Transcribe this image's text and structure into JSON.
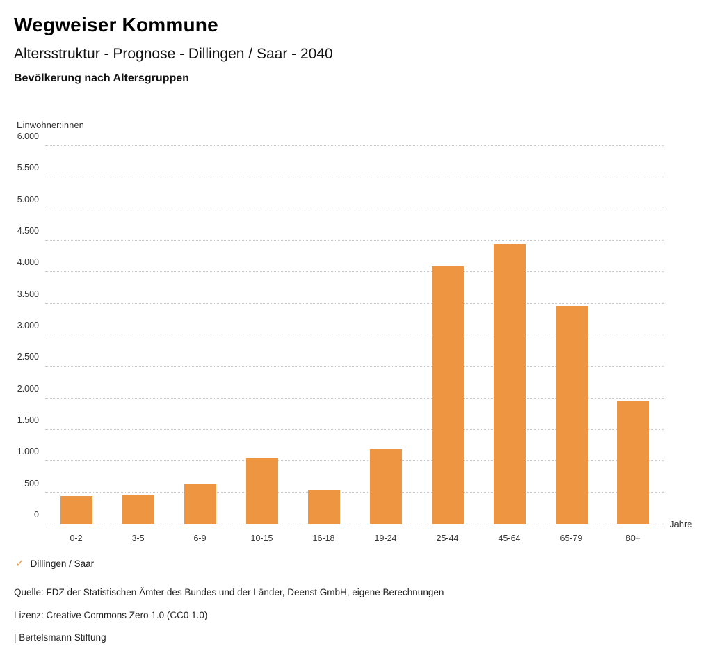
{
  "header": {
    "title": "Wegweiser Kommune",
    "subtitle": "Altersstruktur - Prognose - Dillingen / Saar - 2040",
    "chart_title": "Bevölkerung nach Altersgruppen"
  },
  "chart_data": {
    "type": "bar",
    "title": "Bevölkerung nach Altersgruppen",
    "categories": [
      "0-2",
      "3-5",
      "6-9",
      "10-15",
      "16-18",
      "19-24",
      "25-44",
      "45-64",
      "65-79",
      "80+"
    ],
    "values": [
      450,
      460,
      640,
      1050,
      550,
      1190,
      4090,
      4450,
      3460,
      1960
    ],
    "series_name": "Dillingen / Saar",
    "xlabel": "Jahre",
    "ylabel": "Einwohner:innen",
    "ylim": [
      0,
      6000
    ],
    "ytick_step": 500,
    "ytick_labels": [
      "0",
      "500",
      "1.000",
      "1.500",
      "2.000",
      "2.500",
      "3.000",
      "3.500",
      "4.000",
      "4.500",
      "5.000",
      "5.500",
      "6.000"
    ],
    "grid": true,
    "legend_position": "bottom-left",
    "bar_color": "#ED9540"
  },
  "legend": {
    "check_icon": "✓",
    "label": "Dillingen / Saar"
  },
  "footer": {
    "source": "Quelle: FDZ der Statistischen Ämter des Bundes und der Länder, Deenst GmbH, eigene Berechnungen",
    "license": "Lizenz: Creative Commons Zero 1.0 (CC0 1.0)",
    "attribution": "| Bertelsmann Stiftung"
  }
}
